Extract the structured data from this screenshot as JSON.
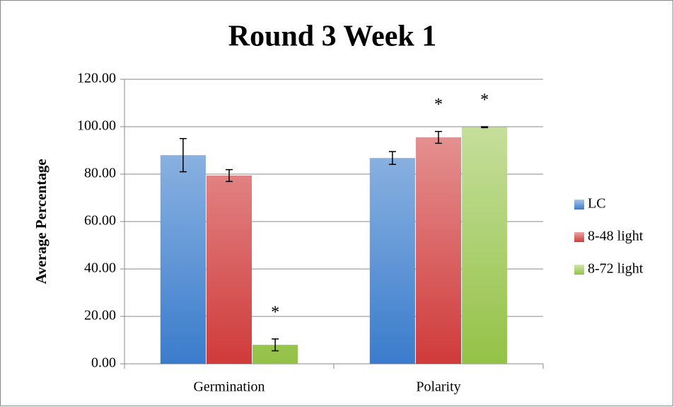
{
  "chart_data": {
    "type": "bar",
    "title": "Round 3 Week 1",
    "y_label": "Average Percentage",
    "categories": [
      "Germination",
      "Polarity"
    ],
    "series": [
      {
        "name": "LC",
        "color": "#3a7ccc",
        "values": [
          88.0,
          86.8
        ],
        "errors": [
          7.0,
          2.7
        ]
      },
      {
        "name": "8-48 light",
        "color": "#d03a3a",
        "values": [
          79.4,
          95.5
        ],
        "errors": [
          2.5,
          2.5
        ]
      },
      {
        "name": "8-72 light",
        "color": "#94c247",
        "values": [
          8.0,
          99.8
        ],
        "errors": [
          2.5,
          0.2
        ]
      }
    ],
    "annotations": [
      {
        "text": "*",
        "category": "Germination",
        "series": "8-72 light"
      },
      {
        "text": "*",
        "category": "Polarity",
        "series": "8-48 light"
      },
      {
        "text": "*",
        "category": "Polarity",
        "series": "8-72 light"
      }
    ],
    "ylim": [
      0,
      120
    ],
    "yticks": [
      {
        "value": 0,
        "label": "0.00"
      },
      {
        "value": 20,
        "label": "20.00"
      },
      {
        "value": 40,
        "label": "40.00"
      },
      {
        "value": 60,
        "label": "60.00"
      },
      {
        "value": 80,
        "label": "80.00"
      },
      {
        "value": 100,
        "label": "100.00"
      },
      {
        "value": 120,
        "label": "120.00"
      }
    ],
    "grid": true,
    "legend": "right"
  }
}
